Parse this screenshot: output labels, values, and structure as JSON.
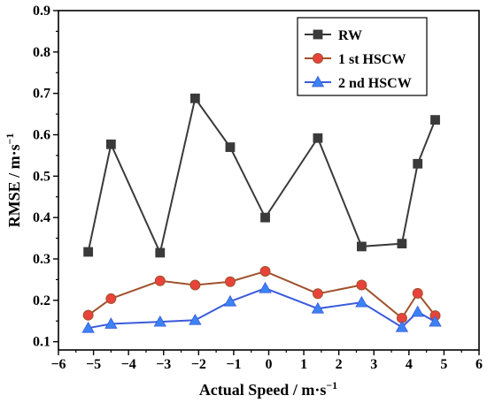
{
  "chart_data": {
    "type": "line",
    "xlabel": "Actual Speed / m·s",
    "xlabel_sup": "−1",
    "ylabel": "RMSE / m·s",
    "ylabel_sup": "−1",
    "xlim": [
      -6,
      6
    ],
    "ylim": [
      0.08,
      0.9
    ],
    "x_ticks": [
      -6,
      -5,
      -4,
      -3,
      -2,
      -1,
      0,
      1,
      2,
      3,
      4,
      5,
      6
    ],
    "x_tick_labels": [
      "−6",
      "−5",
      "−4",
      "−3",
      "−2",
      "−1",
      "0",
      "1",
      "2",
      "3",
      "4",
      "5",
      "6"
    ],
    "y_ticks": [
      0.1,
      0.2,
      0.3,
      0.4,
      0.5,
      0.6,
      0.7,
      0.8,
      0.9
    ],
    "y_tick_labels": [
      "0.1",
      "0.2",
      "0.3",
      "0.4",
      "0.5",
      "0.6",
      "0.7",
      "0.8",
      "0.9"
    ],
    "grid": false,
    "legend_position": "top-right",
    "series": [
      {
        "name": "RW",
        "color": "#3a3a3a",
        "marker": "square",
        "x": [
          -5.15,
          -4.5,
          -3.1,
          -2.1,
          -1.1,
          -0.1,
          1.4,
          2.65,
          3.8,
          4.25,
          4.75
        ],
        "y": [
          0.317,
          0.577,
          0.315,
          0.688,
          0.57,
          0.4,
          0.592,
          0.33,
          0.337,
          0.53,
          0.636
        ]
      },
      {
        "name": "1 st HSCW",
        "color": "#a0522d",
        "marker_fill": "#e8433a",
        "marker": "circle",
        "x": [
          -5.15,
          -4.5,
          -3.1,
          -2.1,
          -1.1,
          -0.1,
          1.4,
          2.65,
          3.8,
          4.25,
          4.75
        ],
        "y": [
          0.164,
          0.204,
          0.247,
          0.237,
          0.245,
          0.27,
          0.216,
          0.237,
          0.157,
          0.217,
          0.163
        ]
      },
      {
        "name": "2 nd HSCW",
        "color": "#3b5bdb",
        "marker_fill": "#3b82f6",
        "marker": "triangle",
        "x": [
          -5.15,
          -4.5,
          -3.1,
          -2.1,
          -1.1,
          -0.1,
          1.4,
          2.65,
          3.8,
          4.25,
          4.75
        ],
        "y": [
          0.133,
          0.143,
          0.148,
          0.152,
          0.197,
          0.229,
          0.18,
          0.195,
          0.135,
          0.172,
          0.148
        ]
      }
    ]
  }
}
